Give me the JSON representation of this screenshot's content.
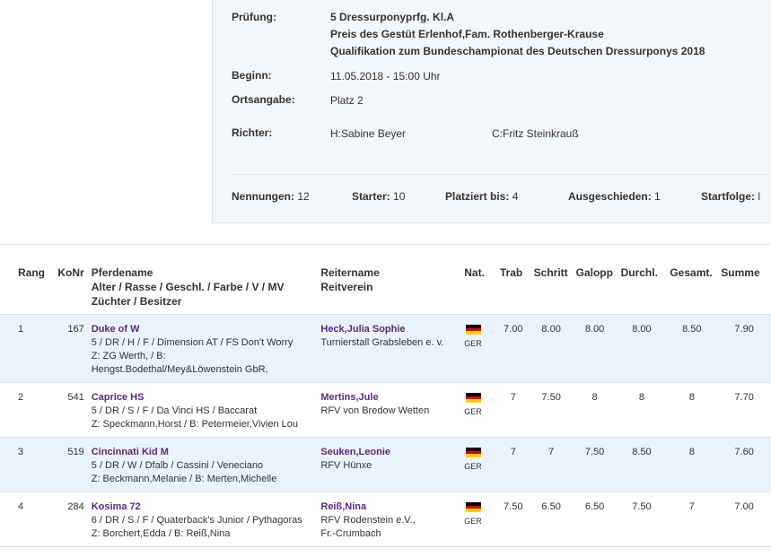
{
  "pruefung": {
    "label": "Prüfung:",
    "lines": [
      "5 Dressurponyprfg. Kl.A",
      "Preis des Gestüt Erlenhof,Fam. Rothenberger-Krause",
      "Qualifikation zum Bundeschampionat des Deutschen Dressurponys 2018"
    ]
  },
  "beginn": {
    "label": "Beginn:",
    "value": "11.05.2018 - 15:00 Uhr"
  },
  "ortsangabe": {
    "label": "Ortsangabe:",
    "value": "Platz 2"
  },
  "richter": {
    "label": "Richter:",
    "h": "H:Sabine Beyer",
    "c": "C:Fritz Steinkrauß"
  },
  "stats": {
    "nennungen_label": "Nennungen:",
    "nennungen": "12",
    "starter_label": "Starter:",
    "starter": "10",
    "platziert_label": "Platziert bis:",
    "platziert": "4",
    "ausgeschieden_label": "Ausgeschieden:",
    "ausgeschieden": "1",
    "startfolge_label": "Startfolge:",
    "startfolge": "l"
  },
  "columns": {
    "rang": "Rang",
    "konr": "KoNr",
    "pferd_1": "Pferdename",
    "pferd_2": "Alter / Rasse / Geschl. / Farbe / V / MV",
    "pferd_3": "Züchter / Besitzer",
    "reiter_1": "Reitername",
    "reiter_2": "Reitverein",
    "nat": "Nat.",
    "trab": "Trab",
    "schritt": "Schritt",
    "galopp": "Galopp",
    "durchl": "Durchl.",
    "gesamt": "Gesamt.",
    "summe": "Summe"
  },
  "rows": [
    {
      "rang": "1",
      "konr": "167",
      "horse": "Duke of W",
      "details": "5 / DR / H / F / Dimension AT / FS Don't Worry",
      "breeder": "Z: ZG Werth, / B:",
      "breeder2": "Hengst.Bodethal/Mey&Löwenstein GbR,",
      "rider": "Heck,Julia Sophie",
      "club": "Turnierstall Grabsleben e. v.",
      "club2": "",
      "nat": "GER",
      "trab": "7.00",
      "schritt": "8.00",
      "galopp": "8.00",
      "durchl": "8.00",
      "gesamt": "8.50",
      "summe": "7.90"
    },
    {
      "rang": "2",
      "konr": "541",
      "horse": "Caprice HS",
      "details": "5 / DR / S / F / Da Vinci HS / Baccarat",
      "breeder": "Z: Speckmann,Horst / B: Petermeier,Vivien Lou",
      "breeder2": "",
      "rider": "Mertins,Jule",
      "club": "RFV von Bredow Wetten",
      "club2": "",
      "nat": "GER",
      "trab": "7",
      "schritt": "7.50",
      "galopp": "8",
      "durchl": "8",
      "gesamt": "8",
      "summe": "7.70"
    },
    {
      "rang": "3",
      "konr": "519",
      "horse": "Cincinnati Kid M",
      "details": "5 / DR / W / Dfalb / Cassini / Veneciano",
      "breeder": "Z: Beckmann,Melanie / B: Merten,Michelle",
      "breeder2": "",
      "rider": "Seuken,Leonie",
      "club": "RFV Hünxe",
      "club2": "",
      "nat": "GER",
      "trab": "7",
      "schritt": "7",
      "galopp": "7.50",
      "durchl": "8.50",
      "gesamt": "8",
      "summe": "7.60"
    },
    {
      "rang": "4",
      "konr": "284",
      "horse": "Kosima 72",
      "details": "6 / DR / S / F / Quaterback's Junior / Pythagoras",
      "breeder": "Z: Borchert,Edda / B: Reiß,Nina",
      "breeder2": "",
      "rider": "Reiß,Nina",
      "club": "RFV Rodenstein e.V.,",
      "club2": "Fr.-Crumbach",
      "nat": "GER",
      "trab": "7.50",
      "schritt": "6.50",
      "galopp": "6.50",
      "durchl": "7.50",
      "gesamt": "7",
      "summe": "7.00"
    }
  ],
  "colors": {
    "link": "#5b2a7c",
    "row_shade": "#eaf3f9",
    "panel": "#f4f7fa"
  },
  "icons": {
    "flag": "germany-flag-icon"
  }
}
